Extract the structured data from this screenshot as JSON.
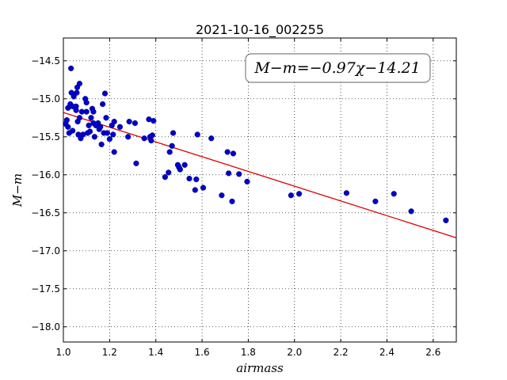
{
  "chart_data": {
    "type": "scatter",
    "title": "2021-10-16_002255",
    "xlabel": "airmass",
    "ylabel": "M−m",
    "annotation": "M−m=−0.97χ−14.21",
    "xlim": [
      1.0,
      2.7
    ],
    "ylim": [
      -18.2,
      -14.2
    ],
    "y_inverted": true,
    "grid": true,
    "x_ticks": [
      1.0,
      1.2,
      1.4,
      1.6,
      1.8,
      2.0,
      2.2,
      2.4,
      2.6
    ],
    "x_tick_labels": [
      "1.0",
      "1.2",
      "1.4",
      "1.6",
      "1.8",
      "2.0",
      "2.2",
      "2.4",
      "2.6"
    ],
    "y_ticks": [
      -14.5,
      -15.0,
      -15.5,
      -16.0,
      -16.5,
      -17.0,
      -17.5,
      -18.0
    ],
    "y_tick_labels": [
      "−14.5",
      "−15.0",
      "−15.5",
      "−16.0",
      "−16.5",
      "−17.0",
      "−17.5",
      "−18.0"
    ],
    "point_color": "#0000cc",
    "fit_color": "#dd0000",
    "fit": {
      "slope": -0.97,
      "intercept": -14.21
    },
    "series": [
      {
        "points": [
          [
            1.01,
            -15.33
          ],
          [
            1.015,
            -15.28
          ],
          [
            1.02,
            -15.37
          ],
          [
            1.02,
            -15.12
          ],
          [
            1.025,
            -15.45
          ],
          [
            1.03,
            -15.07
          ],
          [
            1.033,
            -14.6
          ],
          [
            1.035,
            -14.92
          ],
          [
            1.04,
            -15.42
          ],
          [
            1.04,
            -15.1
          ],
          [
            1.045,
            -14.97
          ],
          [
            1.055,
            -15.1
          ],
          [
            1.055,
            -15.15
          ],
          [
            1.058,
            -14.92
          ],
          [
            1.06,
            -14.85
          ],
          [
            1.062,
            -15.3
          ],
          [
            1.065,
            -15.47
          ],
          [
            1.07,
            -14.8
          ],
          [
            1.07,
            -15.25
          ],
          [
            1.075,
            -15.52
          ],
          [
            1.08,
            -15.17
          ],
          [
            1.085,
            -15.47
          ],
          [
            1.095,
            -15.0
          ],
          [
            1.1,
            -15.05
          ],
          [
            1.1,
            -15.17
          ],
          [
            1.105,
            -15.45
          ],
          [
            1.11,
            -15.35
          ],
          [
            1.115,
            -15.43
          ],
          [
            1.12,
            -15.25
          ],
          [
            1.125,
            -15.13
          ],
          [
            1.13,
            -15.32
          ],
          [
            1.13,
            -15.17
          ],
          [
            1.135,
            -15.5
          ],
          [
            1.14,
            -15.35
          ],
          [
            1.15,
            -15.32
          ],
          [
            1.155,
            -15.4
          ],
          [
            1.16,
            -15.37
          ],
          [
            1.165,
            -15.6
          ],
          [
            1.17,
            -15.07
          ],
          [
            1.175,
            -15.45
          ],
          [
            1.18,
            -14.93
          ],
          [
            1.185,
            -15.25
          ],
          [
            1.19,
            -15.45
          ],
          [
            1.2,
            -15.53
          ],
          [
            1.21,
            -15.35
          ],
          [
            1.215,
            -15.47
          ],
          [
            1.22,
            -15.3
          ],
          [
            1.22,
            -15.7
          ],
          [
            1.245,
            -15.37
          ],
          [
            1.28,
            -15.5
          ],
          [
            1.285,
            -15.3
          ],
          [
            1.31,
            -15.32
          ],
          [
            1.315,
            -15.85
          ],
          [
            1.35,
            -15.52
          ],
          [
            1.37,
            -15.27
          ],
          [
            1.375,
            -15.5
          ],
          [
            1.38,
            -15.55
          ],
          [
            1.385,
            -15.48
          ],
          [
            1.39,
            -15.29
          ],
          [
            1.44,
            -16.03
          ],
          [
            1.455,
            -15.97
          ],
          [
            1.46,
            -15.7
          ],
          [
            1.47,
            -15.62
          ],
          [
            1.475,
            -15.45
          ],
          [
            1.495,
            -15.87
          ],
          [
            1.5,
            -15.9
          ],
          [
            1.505,
            -15.93
          ],
          [
            1.525,
            -15.87
          ],
          [
            1.545,
            -16.05
          ],
          [
            1.57,
            -16.2
          ],
          [
            1.575,
            -16.06
          ],
          [
            1.58,
            -15.47
          ],
          [
            1.605,
            -16.17
          ],
          [
            1.64,
            -15.52
          ],
          [
            1.685,
            -16.27
          ],
          [
            1.71,
            -15.7
          ],
          [
            1.715,
            -15.98
          ],
          [
            1.73,
            -16.35
          ],
          [
            1.735,
            -15.72
          ],
          [
            1.76,
            -15.99
          ],
          [
            1.795,
            -16.09
          ],
          [
            1.985,
            -16.27
          ],
          [
            2.02,
            -16.25
          ],
          [
            2.225,
            -16.24
          ],
          [
            2.35,
            -16.35
          ],
          [
            2.43,
            -16.25
          ],
          [
            2.505,
            -16.48
          ],
          [
            2.655,
            -16.6
          ]
        ]
      }
    ]
  }
}
